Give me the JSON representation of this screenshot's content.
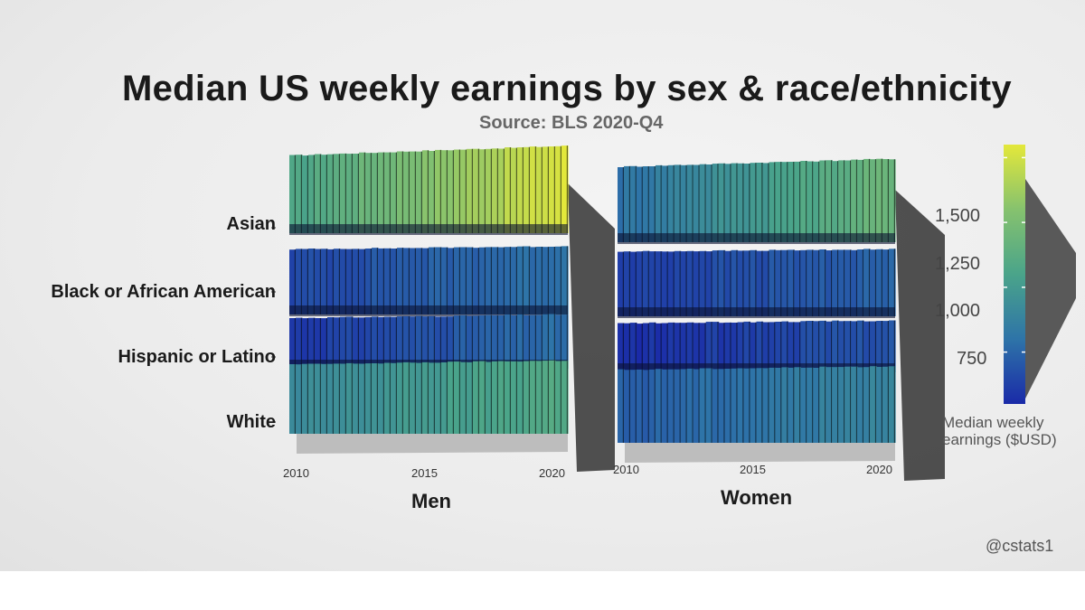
{
  "chart_data": {
    "type": "heatmap",
    "title": "Median US weekly earnings by sex & race/ethnicity",
    "subtitle": "Source: BLS 2020-Q4",
    "row_categories": [
      "Asian",
      "Black or African American",
      "Hispanic or Latino",
      "White"
    ],
    "x_ticks": [
      "2010",
      "2015",
      "2020"
    ],
    "x_range": [
      2010,
      2020.75
    ],
    "panels": [
      {
        "name": "Men",
        "series": [
          {
            "name": "Asian",
            "start": 1050,
            "end": 1530
          },
          {
            "name": "Black or African American",
            "start": 650,
            "end": 800
          },
          {
            "name": "Hispanic or Latino",
            "start": 600,
            "end": 780
          },
          {
            "name": "White",
            "start": 900,
            "end": 1100
          }
        ]
      },
      {
        "name": "Women",
        "series": [
          {
            "name": "Asian",
            "start": 800,
            "end": 1200
          },
          {
            "name": "Black or African American",
            "start": 620,
            "end": 740
          },
          {
            "name": "Hispanic or Latino",
            "start": 560,
            "end": 700
          },
          {
            "name": "White",
            "start": 720,
            "end": 900
          }
        ]
      }
    ],
    "colorbar": {
      "label": "Median weekly earnings ($USD)",
      "ticks": [
        1500,
        1250,
        1000,
        750
      ],
      "tick_labels": [
        "1,500",
        "1,250",
        "1,000",
        "750"
      ],
      "range": [
        550,
        1550
      ],
      "colors": [
        "#1a2aa8",
        "#2e74a8",
        "#4aa48a",
        "#86c26e",
        "#e4e83a"
      ]
    }
  },
  "labels": {
    "title": "Median US weekly earnings by sex & race/ethnicity",
    "subtitle": "Source: BLS 2020-Q4",
    "rows": [
      "Asian",
      "Black or African American",
      "Hispanic or Latino",
      "White"
    ],
    "panel_men": "Men",
    "panel_women": "Women",
    "colorbar_label_1": "Median weekly",
    "colorbar_label_2": "earnings ($USD)",
    "credit": "@cstats1"
  }
}
